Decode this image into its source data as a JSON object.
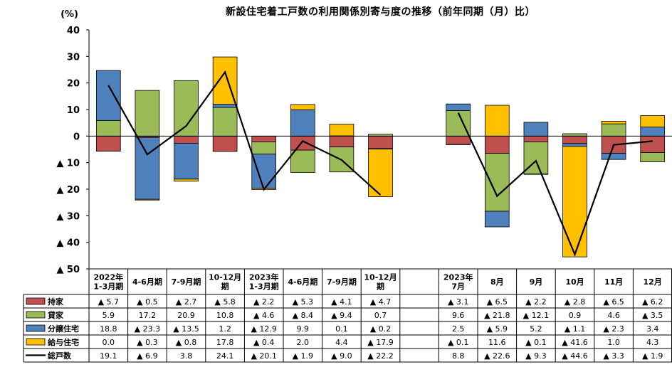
{
  "chart_data": {
    "type": "bar",
    "stacked": true,
    "title": "新設住宅着工戸数の利用関係別寄与度の推移（前年同期（月）比）",
    "y_unit": "(%)",
    "ylim": [
      -50,
      40
    ],
    "yticks": [
      40,
      30,
      20,
      10,
      0,
      -10,
      -20,
      -30,
      -40,
      -50
    ],
    "ytick_labels": [
      "40",
      "30",
      "20",
      "10",
      "0",
      "▲ 10",
      "▲ 20",
      "▲ 30",
      "▲ 40",
      "▲ 50"
    ],
    "grid": false,
    "categories": [
      [
        "2022年",
        "1-3月期"
      ],
      [
        "4-6月期"
      ],
      [
        "7-9月期"
      ],
      [
        "10-12月",
        "期"
      ],
      [
        "2023年",
        "1-3月期"
      ],
      [
        "4-6月期"
      ],
      [
        "7-9月期"
      ],
      [
        "10-12月",
        "期"
      ],
      [
        ""
      ],
      [
        "2023年",
        "7月"
      ],
      [
        "8月"
      ],
      [
        "9月"
      ],
      [
        "10月"
      ],
      [
        "11月"
      ],
      [
        "12月"
      ]
    ],
    "series": [
      {
        "name": "持家",
        "kind": "bar",
        "color": "#c0504d",
        "values": [
          -5.7,
          -0.5,
          -2.7,
          -5.8,
          -2.2,
          -5.3,
          -4.1,
          -4.7,
          null,
          -3.1,
          -6.5,
          -2.2,
          -2.8,
          -6.5,
          -6.2
        ],
        "labels": [
          "▲ 5.7",
          "▲ 0.5",
          "▲ 2.7",
          "▲ 5.8",
          "▲ 2.2",
          "▲ 5.3",
          "▲ 4.1",
          "▲ 4.7",
          "",
          "▲ 3.1",
          "▲ 6.5",
          "▲ 2.2",
          "▲ 2.8",
          "▲ 6.5",
          "▲ 6.2"
        ]
      },
      {
        "name": "貸家",
        "kind": "bar",
        "color": "#9bbb59",
        "values": [
          5.9,
          17.2,
          20.9,
          10.8,
          -4.6,
          -8.4,
          -9.4,
          0.7,
          null,
          9.6,
          -21.8,
          -12.1,
          0.9,
          4.6,
          -3.5
        ],
        "labels": [
          "5.9",
          "17.2",
          "20.9",
          "10.8",
          "▲ 4.6",
          "▲ 8.4",
          "▲ 9.4",
          "0.7",
          "",
          "9.6",
          "▲ 21.8",
          "▲ 12.1",
          "0.9",
          "4.6",
          "▲ 3.5"
        ]
      },
      {
        "name": "分譲住宅",
        "kind": "bar",
        "color": "#4f81bd",
        "values": [
          18.8,
          -23.3,
          -13.5,
          1.2,
          -12.9,
          9.9,
          0.1,
          -0.2,
          null,
          2.5,
          -5.9,
          5.2,
          -1.1,
          -2.3,
          3.4
        ],
        "labels": [
          "18.8",
          "▲ 23.3",
          "▲ 13.5",
          "1.2",
          "▲ 12.9",
          "9.9",
          "0.1",
          "▲ 0.2",
          "",
          "2.5",
          "▲ 5.9",
          "5.2",
          "▲ 1.1",
          "▲ 2.3",
          "3.4"
        ]
      },
      {
        "name": "給与住宅",
        "kind": "bar",
        "color": "#ffc000",
        "values": [
          0.0,
          -0.3,
          -0.8,
          17.8,
          -0.4,
          2.0,
          4.4,
          -17.9,
          null,
          -0.1,
          11.6,
          -0.1,
          -41.6,
          1.0,
          4.3
        ],
        "labels": [
          "0.0",
          "▲ 0.3",
          "▲ 0.8",
          "17.8",
          "▲ 0.4",
          "2.0",
          "4.4",
          "▲ 17.9",
          "",
          "▲ 0.1",
          "11.6",
          "▲ 0.1",
          "▲ 41.6",
          "1.0",
          "4.3"
        ]
      },
      {
        "name": "総戸数",
        "kind": "line",
        "color": "#000000",
        "values": [
          19.1,
          -6.9,
          3.8,
          24.1,
          -20.1,
          -1.9,
          -9.0,
          -22.2,
          null,
          8.8,
          -22.6,
          -9.3,
          -44.6,
          -3.3,
          -1.9
        ],
        "labels": [
          "19.1",
          "▲ 6.9",
          "3.8",
          "24.1",
          "▲ 20.1",
          "▲ 1.9",
          "▲ 9.0",
          "▲ 22.2",
          "",
          "8.8",
          "▲ 22.6",
          "▲ 9.3",
          "▲ 44.6",
          "▲ 3.3",
          "▲ 1.9"
        ]
      }
    ]
  }
}
